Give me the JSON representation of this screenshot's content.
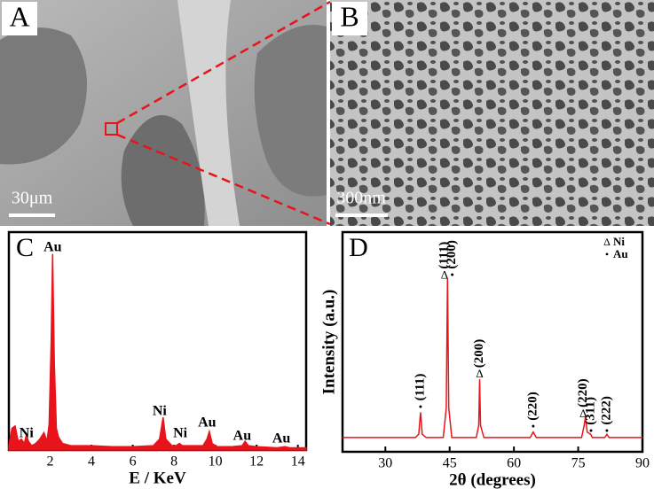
{
  "panels": {
    "a": {
      "letter": "A",
      "scale": "30μm"
    },
    "b": {
      "letter": "B",
      "scale": "300nm"
    }
  },
  "chart_data": [
    {
      "type": "area",
      "panel": "C",
      "xlabel": "E / KeV",
      "color": "#e8141b",
      "xlim": [
        0,
        14.4
      ],
      "ylim": [
        0,
        100
      ],
      "xticks": [
        2,
        4,
        6,
        8,
        10,
        12,
        14
      ],
      "x": [
        0,
        0.15,
        0.3,
        0.45,
        0.6,
        0.75,
        0.85,
        0.95,
        1.1,
        1.3,
        1.5,
        1.7,
        1.85,
        1.95,
        2.05,
        2.12,
        2.2,
        2.3,
        2.4,
        2.6,
        3,
        4,
        5,
        6,
        7,
        7.3,
        7.47,
        7.6,
        7.9,
        8.1,
        8.26,
        8.4,
        8.8,
        9.4,
        9.6,
        9.71,
        9.85,
        10.1,
        10.8,
        11.3,
        11.44,
        11.6,
        12,
        13,
        13.38,
        13.6,
        14.4
      ],
      "values": [
        2,
        10,
        11,
        4,
        5,
        3,
        7,
        4,
        2,
        3,
        5,
        8,
        4,
        12,
        50,
        90,
        40,
        10,
        6,
        3,
        2,
        2,
        1.5,
        1.5,
        2,
        5,
        15,
        5,
        2,
        2,
        3,
        2,
        2,
        2,
        5,
        8.5,
        3,
        1.5,
        1.5,
        2,
        4,
        2,
        1.5,
        1,
        1.5,
        1,
        1
      ],
      "annotations": [
        {
          "text": "Au",
          "x": 2.12,
          "y": 92.7
        },
        {
          "text": "Ni",
          "x": 0.85,
          "y": 7.3
        },
        {
          "text": "Ni",
          "x": 7.3,
          "y": 17.5
        },
        {
          "text": "Ni",
          "x": 8.3,
          "y": 7.3
        },
        {
          "text": "Au",
          "x": 9.6,
          "y": 12.2
        },
        {
          "text": "Au",
          "x": 11.3,
          "y": 6.1
        },
        {
          "text": "Au",
          "x": 13.2,
          "y": 4.9
        }
      ]
    },
    {
      "type": "line",
      "panel": "D",
      "xlabel": "2θ (degrees)",
      "ylabel": "Intensity (a.u.)",
      "color": "#e8141b",
      "xlim": [
        20,
        90
      ],
      "ylim": [
        0,
        100
      ],
      "xticks": [
        30,
        45,
        60,
        75,
        90
      ],
      "x": [
        20,
        30,
        37,
        37.8,
        38.2,
        38.6,
        39.5,
        43.5,
        44.2,
        44.5,
        44.8,
        45.5,
        51.2,
        51.8,
        52,
        52.2,
        53,
        63.8,
        64.5,
        65.2,
        75.8,
        76.4,
        76.7,
        77.1,
        77.9,
        78.3,
        81.2,
        81.7,
        82.2,
        90
      ],
      "values": [
        6.5,
        6.5,
        6.5,
        8,
        18,
        8,
        6.5,
        6.5,
        20,
        79,
        20,
        6.5,
        6.5,
        12,
        33,
        12,
        6.5,
        6.5,
        9,
        6.5,
        6.5,
        12,
        16,
        9,
        8,
        6.5,
        6.5,
        8,
        6.5,
        6.5
      ],
      "annotations": [
        {
          "marker": "•",
          "text": "(111)",
          "x": 38.2,
          "y": 20
        },
        {
          "marker": "Δ",
          "text": "(111)",
          "x": 43.8,
          "y": 80
        },
        {
          "marker": "•",
          "text": "(200)",
          "x": 45.6,
          "y": 80
        },
        {
          "marker": "Δ",
          "text": "(200)",
          "x": 52,
          "y": 35
        },
        {
          "marker": "•",
          "text": "(220)",
          "x": 64.5,
          "y": 11
        },
        {
          "marker": "Δ",
          "text": "(220)",
          "x": 76.2,
          "y": 17
        },
        {
          "marker": "•",
          "text": "(311)",
          "x": 78,
          "y": 9
        },
        {
          "marker": "•",
          "text": "(222)",
          "x": 81.7,
          "y": 9
        }
      ],
      "legend": [
        {
          "marker": "Δ",
          "name": "Ni"
        },
        {
          "marker": "•",
          "name": "Au"
        }
      ]
    }
  ]
}
